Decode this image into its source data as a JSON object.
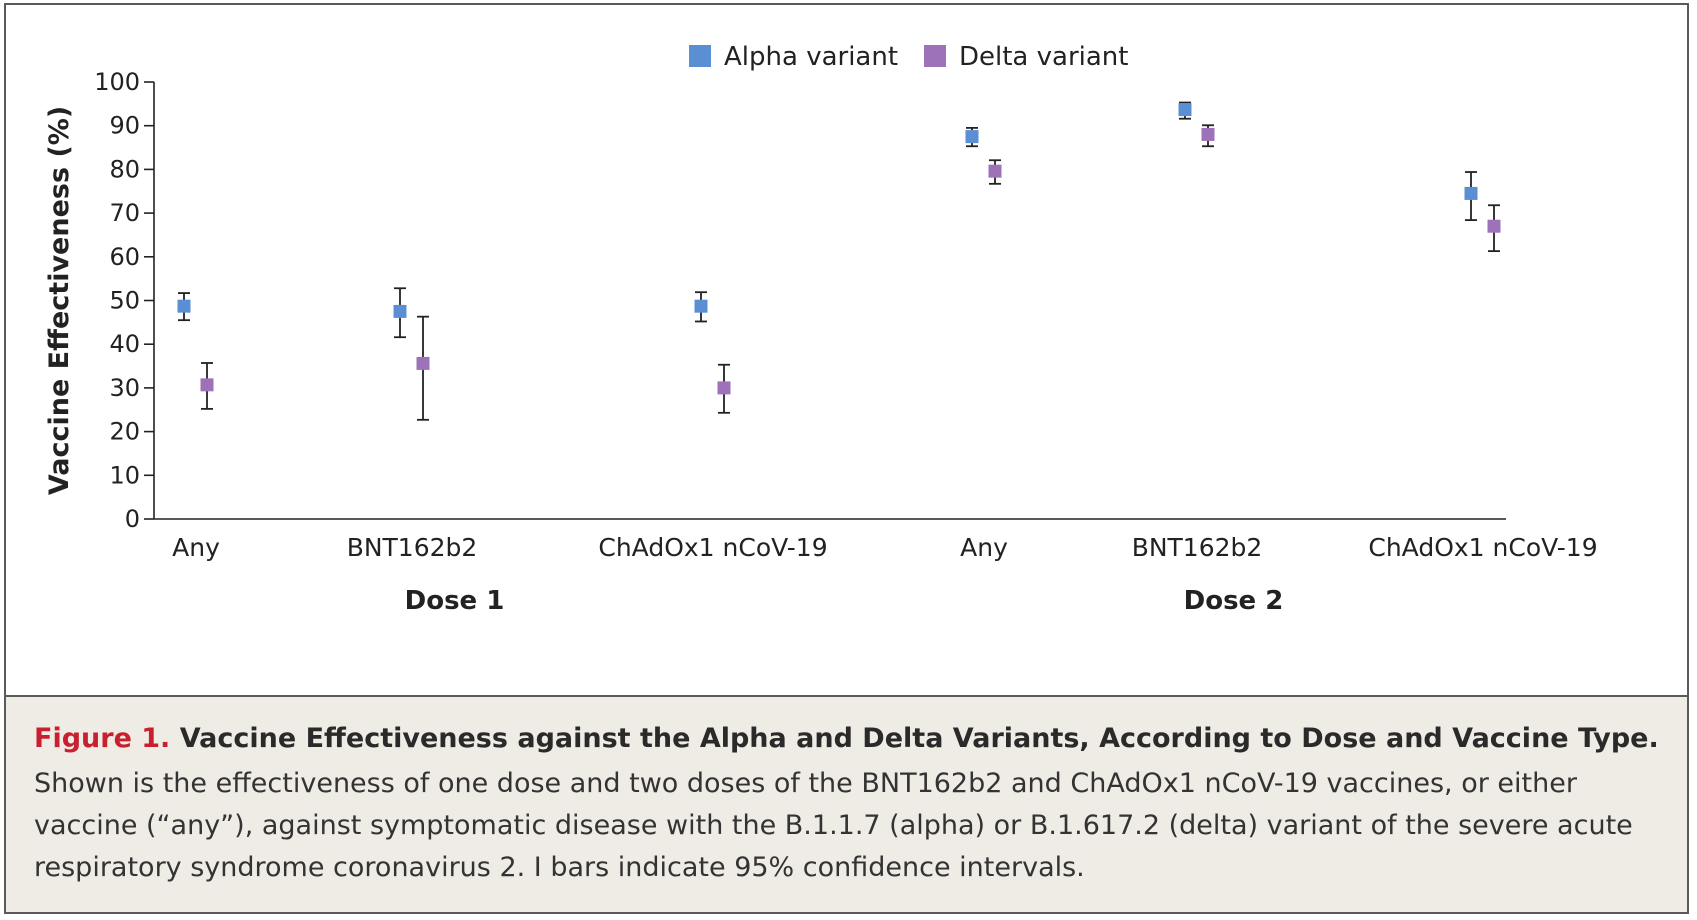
{
  "chart_data": {
    "type": "scatter",
    "ylabel": "Vaccine Effectiveness (%)",
    "ylim": [
      0,
      100
    ],
    "yticks": [
      0,
      10,
      20,
      30,
      40,
      50,
      60,
      70,
      80,
      90,
      100
    ],
    "legend_position": "top-center",
    "grid": false,
    "groups": [
      "Dose 1",
      "Dose 2"
    ],
    "categories": [
      "Any",
      "BNT162b2",
      "ChAdOx1 nCoV-19",
      "Any",
      "BNT162b2",
      "ChAdOx1 nCoV-19"
    ],
    "category_group": [
      0,
      0,
      0,
      1,
      1,
      1
    ],
    "series": [
      {
        "name": "Alpha variant",
        "color": "#5b8fd4",
        "values": [
          48.7,
          47.5,
          48.7,
          87.5,
          93.7,
          74.5
        ],
        "ci_low": [
          45.5,
          41.6,
          45.2,
          85.3,
          91.6,
          68.4
        ],
        "ci_high": [
          51.7,
          52.8,
          51.9,
          89.5,
          95.3,
          79.4
        ]
      },
      {
        "name": "Delta variant",
        "color": "#9e72b8",
        "values": [
          30.7,
          35.6,
          30.0,
          79.6,
          88.0,
          67.0
        ],
        "ci_low": [
          25.2,
          22.7,
          24.3,
          76.7,
          85.3,
          61.3
        ],
        "ci_high": [
          35.7,
          46.3,
          35.3,
          82.1,
          90.1,
          71.8
        ]
      }
    ]
  },
  "caption": {
    "label": "Figure 1.",
    "title": "Vaccine Effectiveness against the Alpha and Delta Variants, According to Dose and Vaccine Type.",
    "body": "Shown is the effectiveness of one dose and two doses of the BNT162b2 and ChAdOx1 nCoV-19 vaccines, or either vaccine (“any”), against symptomatic disease with the B.1.1.7 (alpha) or B.1.617.2 (delta) variant of the severe acute respiratory syndrome coronavirus 2. I bars indicate 95% confidence intervals."
  },
  "colors": {
    "caption_label": "#c9202f",
    "caption_background": "#efece6",
    "frame": "#5a5a5a"
  }
}
